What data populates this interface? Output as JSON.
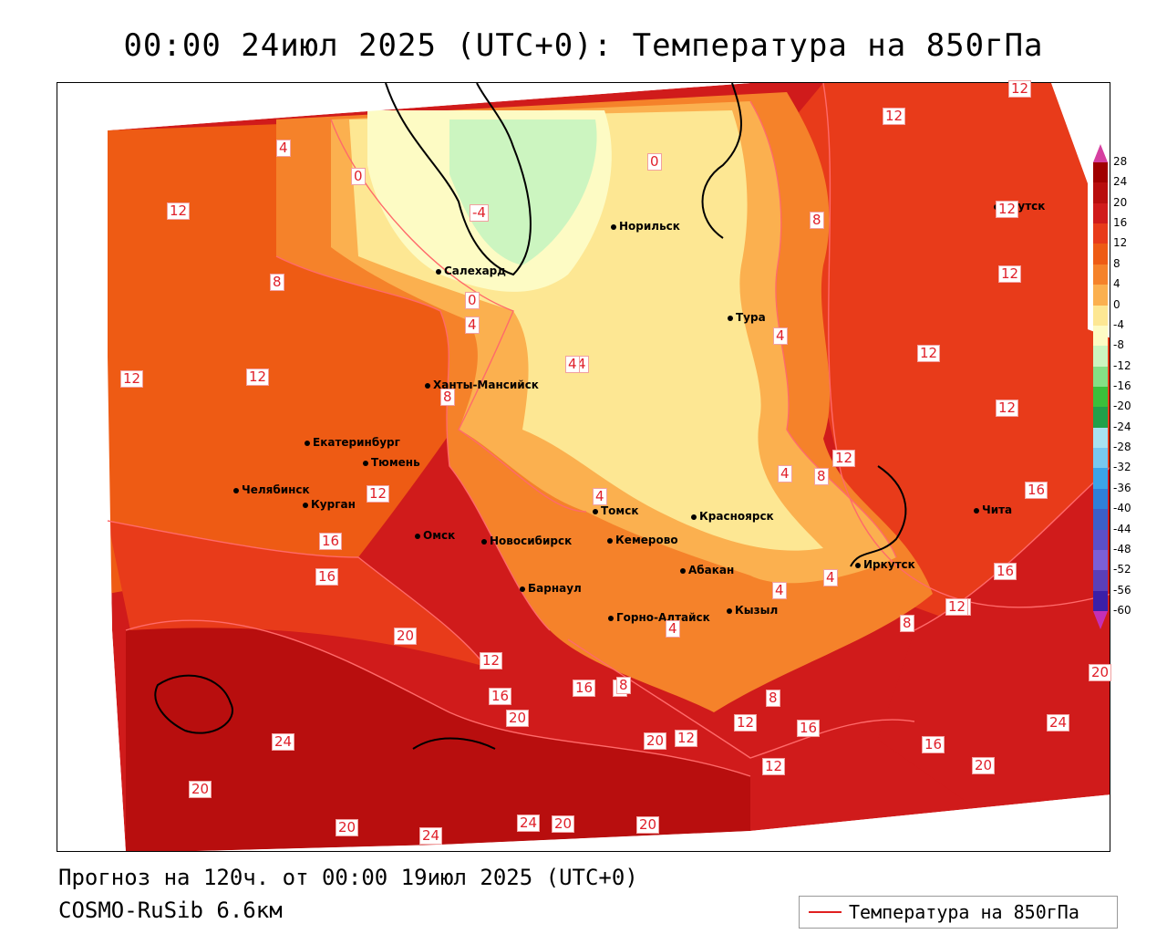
{
  "title": "00:00 24июл 2025 (UTC+0): Температура на 850гПа",
  "forecast_text": "Прогноз на 120ч. от 00:00 19июл 2025 (UTC+0)",
  "model_text": "COSMO-RuSib 6.6км",
  "legend": {
    "line_label": "Температура на 850гПа",
    "line_color": "#e02020"
  },
  "colorbar": {
    "ticks": [
      "28",
      "24",
      "20",
      "16",
      "12",
      "8",
      "4",
      "0",
      "-4",
      "-8",
      "-12",
      "-16",
      "-20",
      "-24",
      "-28",
      "-32",
      "-36",
      "-40",
      "-44",
      "-48",
      "-52",
      "-56",
      "-60"
    ],
    "colors": [
      "#a00000",
      "#b80e0e",
      "#d01b1b",
      "#e83b1a",
      "#ee5b14",
      "#f5822a",
      "#fbb04f",
      "#fde793",
      "#fdfbc4",
      "#ccf5c0",
      "#85df85",
      "#3bbf3b",
      "#21a04a",
      "#a8e2f0",
      "#78c8ef",
      "#3ba4e7",
      "#2e7fd8",
      "#3a5fc8",
      "#5b4fc8",
      "#7b5fd6",
      "#5a3fb8",
      "#3a1fa8"
    ]
  },
  "cities": [
    {
      "name": "Норильск"
    },
    {
      "name": "Якутск"
    },
    {
      "name": "Салехард"
    },
    {
      "name": "Тура"
    },
    {
      "name": "Ханты-Мансийск"
    },
    {
      "name": "Екатеринбург"
    },
    {
      "name": "Тюмень"
    },
    {
      "name": "Челябинск"
    },
    {
      "name": "Курган"
    },
    {
      "name": "Омск"
    },
    {
      "name": "Новосибирск"
    },
    {
      "name": "Томск"
    },
    {
      "name": "Кемерово"
    },
    {
      "name": "Красноярск"
    },
    {
      "name": "Барнаул"
    },
    {
      "name": "Абакан"
    },
    {
      "name": "Кызыл"
    },
    {
      "name": "Горно-Алтайск"
    },
    {
      "name": "Иркутск"
    },
    {
      "name": "Чита"
    }
  ],
  "contour_labels": [
    "12",
    "12",
    "12",
    "8",
    "0",
    "-4",
    "4",
    "4",
    "4",
    "0",
    "0",
    "8",
    "12",
    "12",
    "12",
    "12",
    "4",
    "8",
    "4",
    "12",
    "12",
    "12",
    "12",
    "16",
    "16",
    "20",
    "12",
    "16",
    "20",
    "16",
    "8",
    "8",
    "4",
    "4",
    "4",
    "4",
    "8",
    "12",
    "8",
    "20",
    "24",
    "24",
    "20",
    "24",
    "24",
    "20",
    "20",
    "20",
    "12",
    "12",
    "16",
    "16",
    "12",
    "20",
    "24",
    "20",
    "16",
    "16",
    "4",
    "8",
    "12"
  ]
}
